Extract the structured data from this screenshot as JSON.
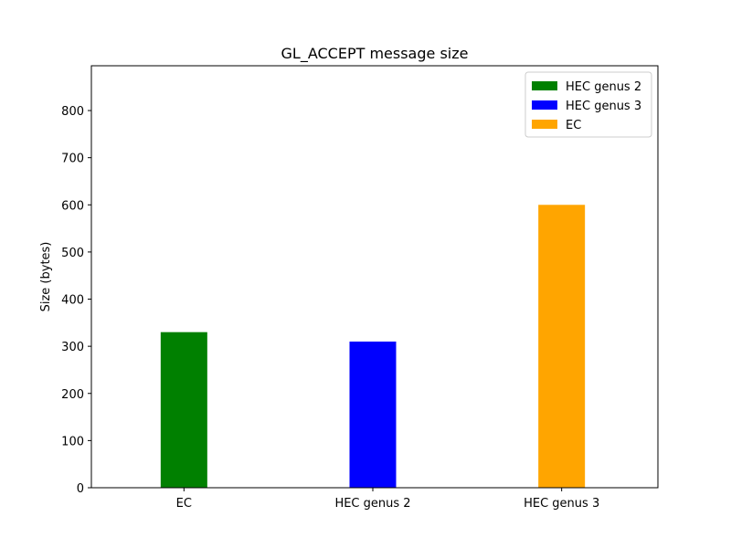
{
  "chart_data": {
    "type": "bar",
    "title": "GL_ACCEPT message size",
    "xlabel": "",
    "ylabel": "Size (bytes)",
    "categories": [
      "EC",
      "HEC genus 2",
      "HEC genus 3"
    ],
    "ylim": [
      0,
      895
    ],
    "yticks": [
      0,
      100,
      200,
      300,
      400,
      500,
      600,
      700,
      800
    ],
    "grid": false,
    "legend_position": "top-right",
    "series": [
      {
        "name": "HEC genus 2",
        "color": "#008000",
        "category": "EC",
        "value": 330
      },
      {
        "name": "HEC genus 3",
        "color": "#0000ff",
        "category": "HEC genus 2",
        "value": 310
      },
      {
        "name": "EC",
        "color": "#ffa500",
        "category": "HEC genus 3",
        "value": 600
      }
    ]
  }
}
